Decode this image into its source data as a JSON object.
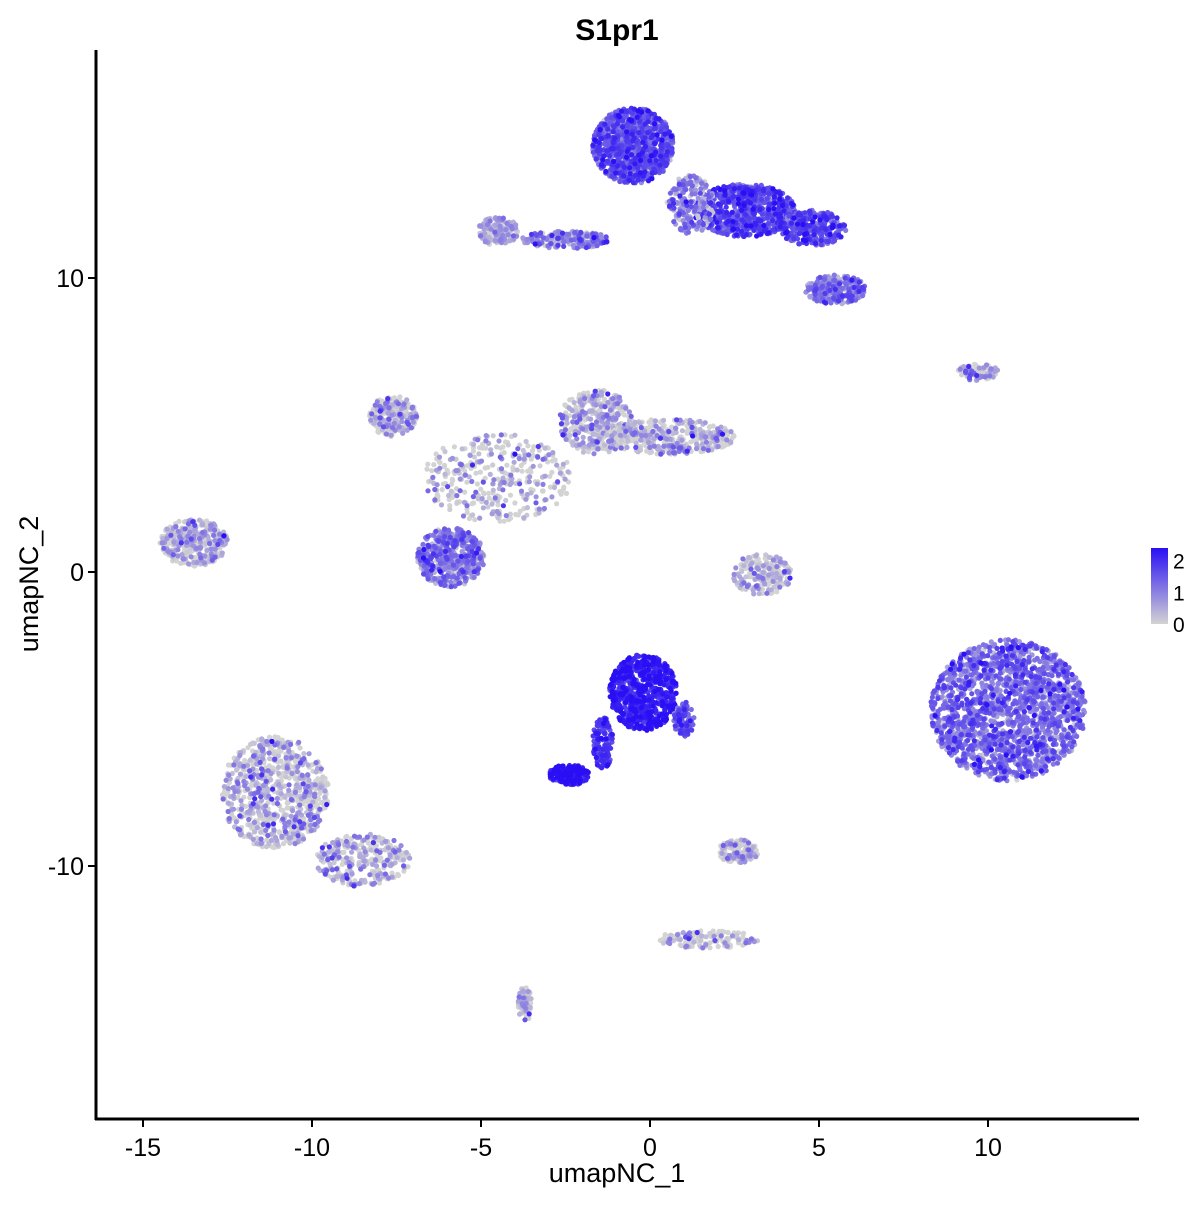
{
  "chart_data": {
    "type": "scatter",
    "title": "S1pr1",
    "xlabel": "umapNC_1",
    "ylabel": "umapNC_2",
    "xlim": [
      -16.5,
      14.5
    ],
    "ylim": [
      -18.5,
      17.5
    ],
    "xticks": [
      -15,
      -10,
      -5,
      0,
      5,
      10
    ],
    "yticks": [
      -10,
      0,
      10
    ],
    "grid": false,
    "legend": {
      "position": "right",
      "type": "colorbar",
      "ticks": [
        0,
        1,
        2
      ],
      "range": [
        0,
        2.4
      ]
    },
    "color_low": "#d3d3d3",
    "color_high": "#2a0ff5",
    "clusters": [
      {
        "cx": -0.5,
        "cy": 14.5,
        "rx": 1.2,
        "ry": 1.3,
        "n": 900,
        "expr": 1.45,
        "spread": 0.5
      },
      {
        "cx": 2.8,
        "cy": 12.3,
        "rx": 1.5,
        "ry": 0.9,
        "n": 700,
        "expr": 1.55,
        "spread": 0.5
      },
      {
        "cx": 4.8,
        "cy": 11.7,
        "rx": 1.0,
        "ry": 0.6,
        "n": 300,
        "expr": 1.5,
        "spread": 0.5
      },
      {
        "cx": 5.5,
        "cy": 9.6,
        "rx": 0.9,
        "ry": 0.5,
        "n": 250,
        "expr": 1.0,
        "spread": 0.6
      },
      {
        "cx": 1.2,
        "cy": 12.5,
        "rx": 0.7,
        "ry": 1.0,
        "n": 200,
        "expr": 0.8,
        "spread": 0.6
      },
      {
        "cx": -2.5,
        "cy": 11.3,
        "rx": 1.3,
        "ry": 0.3,
        "n": 200,
        "expr": 0.8,
        "spread": 0.6
      },
      {
        "cx": -4.5,
        "cy": 11.6,
        "rx": 0.6,
        "ry": 0.5,
        "n": 150,
        "expr": 0.4,
        "spread": 0.5
      },
      {
        "cx": -0.2,
        "cy": -4.1,
        "rx": 1.0,
        "ry": 1.3,
        "n": 650,
        "expr": 2.1,
        "spread": 0.35
      },
      {
        "cx": -2.4,
        "cy": -6.9,
        "rx": 0.6,
        "ry": 0.35,
        "n": 180,
        "expr": 2.2,
        "spread": 0.3
      },
      {
        "cx": -1.4,
        "cy": -5.8,
        "rx": 0.3,
        "ry": 0.9,
        "n": 120,
        "expr": 1.9,
        "spread": 0.35
      },
      {
        "cx": 1.0,
        "cy": -5.0,
        "rx": 0.3,
        "ry": 0.6,
        "n": 80,
        "expr": 1.5,
        "spread": 0.4
      },
      {
        "cx": 10.6,
        "cy": -4.7,
        "rx": 2.3,
        "ry": 2.4,
        "n": 1800,
        "expr": 1.1,
        "spread": 0.55
      },
      {
        "cx": -11.1,
        "cy": -7.5,
        "rx": 1.6,
        "ry": 1.9,
        "n": 800,
        "expr": 0.12,
        "spread": 0.8
      },
      {
        "cx": -8.5,
        "cy": -9.8,
        "rx": 1.4,
        "ry": 0.9,
        "n": 300,
        "expr": 0.12,
        "spread": 0.8
      },
      {
        "cx": -13.5,
        "cy": 1.0,
        "rx": 1.0,
        "ry": 0.8,
        "n": 400,
        "expr": 0.05,
        "spread": 0.8
      },
      {
        "cx": -7.6,
        "cy": 5.3,
        "rx": 0.7,
        "ry": 0.7,
        "n": 250,
        "expr": 0.05,
        "spread": 0.8
      },
      {
        "cx": -1.6,
        "cy": 5.1,
        "rx": 1.1,
        "ry": 1.1,
        "n": 400,
        "expr": 0.1,
        "spread": 0.8
      },
      {
        "cx": 0.6,
        "cy": 4.6,
        "rx": 1.9,
        "ry": 0.6,
        "n": 400,
        "expr": 0.05,
        "spread": 0.8
      },
      {
        "cx": -4.5,
        "cy": 3.2,
        "rx": 2.2,
        "ry": 1.5,
        "n": 350,
        "expr": 0.05,
        "spread": 0.8
      },
      {
        "cx": -5.9,
        "cy": 0.5,
        "rx": 1.0,
        "ry": 1.0,
        "n": 500,
        "expr": 0.9,
        "spread": 0.6
      },
      {
        "cx": 3.3,
        "cy": -0.1,
        "rx": 0.9,
        "ry": 0.7,
        "n": 200,
        "expr": 0.15,
        "spread": 0.7
      },
      {
        "cx": 9.7,
        "cy": 6.8,
        "rx": 0.6,
        "ry": 0.3,
        "n": 100,
        "expr": 0.2,
        "spread": 0.8
      },
      {
        "cx": 2.6,
        "cy": -9.5,
        "rx": 0.6,
        "ry": 0.4,
        "n": 120,
        "expr": 0.05,
        "spread": 0.8
      },
      {
        "cx": 1.7,
        "cy": -12.5,
        "rx": 1.5,
        "ry": 0.3,
        "n": 120,
        "expr": 0.05,
        "spread": 0.8
      },
      {
        "cx": -3.7,
        "cy": -14.7,
        "rx": 0.2,
        "ry": 0.6,
        "n": 80,
        "expr": 0.05,
        "spread": 0.8
      }
    ]
  }
}
